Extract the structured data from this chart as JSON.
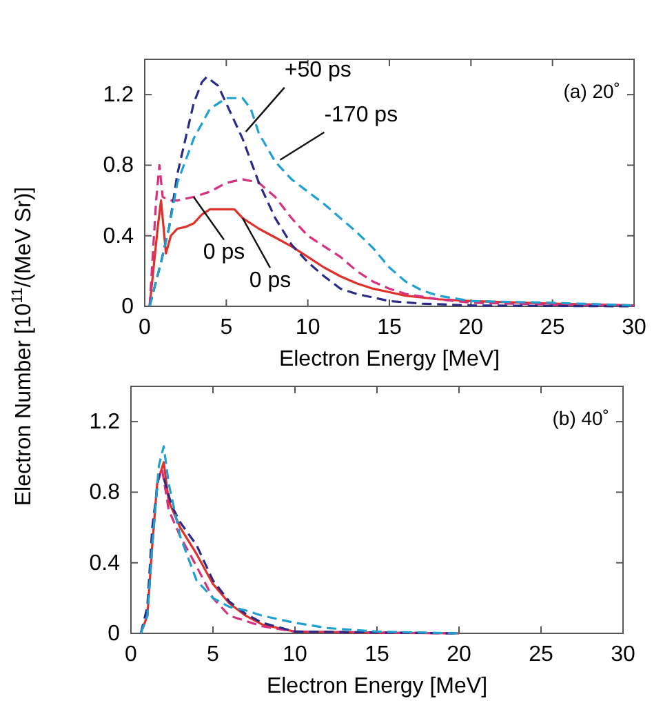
{
  "chart_data": [
    {
      "type": "line",
      "xlabel": "Electron Energy [MeV]",
      "ylabel": "Electron Number [10$^{11}$/(MeV Sr)]",
      "xlim": [
        0,
        30
      ],
      "ylim": [
        0,
        1.4
      ],
      "xticks": [
        0,
        5,
        10,
        15,
        20,
        25,
        30
      ],
      "yticks": [
        0,
        0.4,
        0.8,
        1.2
      ],
      "grid": false,
      "annotations": [
        "(a) 20˚",
        {
          "text": "+50 ps",
          "x": 6.2,
          "y": 0.99
        },
        {
          "text": "-170 ps",
          "x": 8.3,
          "y": 0.83
        },
        {
          "text": "0 ps",
          "x": 3.0,
          "y": 0.62
        },
        {
          "text": "0 ps",
          "x": 6.0,
          "y": 0.5
        }
      ],
      "series": [
        {
          "color": "#e0302a",
          "line_style": "solid",
          "x": [
            0.3,
            0.8,
            1.0,
            1.2,
            1.3,
            1.6,
            2,
            2.5,
            3,
            3.5,
            4,
            5,
            5.5,
            6,
            7,
            8,
            9,
            10,
            11,
            12,
            13,
            14,
            15,
            16,
            18,
            20,
            25,
            30
          ],
          "values": [
            0,
            0.45,
            0.6,
            0.4,
            0.3,
            0.4,
            0.44,
            0.45,
            0.47,
            0.52,
            0.55,
            0.55,
            0.55,
            0.5,
            0.44,
            0.39,
            0.34,
            0.28,
            0.22,
            0.17,
            0.13,
            0.1,
            0.08,
            0.06,
            0.04,
            0.03,
            0.015,
            0.005
          ]
        },
        {
          "color": "#d6307e",
          "line_style": "dashed",
          "x": [
            0.3,
            0.7,
            0.9,
            1.1,
            1.5,
            2,
            3,
            4,
            5,
            6,
            7,
            8,
            9,
            10,
            11,
            12,
            13,
            14,
            15,
            16,
            18,
            20,
            25,
            30
          ],
          "values": [
            0,
            0.6,
            0.8,
            0.62,
            0.6,
            0.6,
            0.62,
            0.65,
            0.7,
            0.72,
            0.7,
            0.62,
            0.5,
            0.4,
            0.34,
            0.28,
            0.2,
            0.14,
            0.1,
            0.07,
            0.04,
            0.02,
            0.01,
            0.005
          ]
        },
        {
          "color": "#2b2b86",
          "line_style": "dashed",
          "x": [
            0.3,
            1,
            1.5,
            2,
            2.5,
            3,
            3.5,
            3.8,
            4.5,
            5,
            6,
            7,
            8,
            9,
            10,
            11,
            12,
            13,
            14,
            15,
            17,
            20,
            30
          ],
          "values": [
            0,
            0.25,
            0.45,
            0.75,
            0.95,
            1.15,
            1.27,
            1.3,
            1.25,
            1.15,
            0.95,
            0.7,
            0.5,
            0.35,
            0.25,
            0.17,
            0.1,
            0.07,
            0.05,
            0.03,
            0.015,
            0.005,
            0
          ]
        },
        {
          "color": "#1fa0d0",
          "line_style": "dashed",
          "x": [
            0.3,
            1,
            1.5,
            2,
            3,
            4,
            5,
            6,
            6.5,
            7,
            8,
            9,
            10,
            11,
            12,
            13,
            14,
            15,
            16,
            17,
            18,
            20,
            25,
            30
          ],
          "values": [
            0,
            0.25,
            0.45,
            0.7,
            0.95,
            1.12,
            1.18,
            1.18,
            1.12,
            0.98,
            0.82,
            0.72,
            0.65,
            0.58,
            0.5,
            0.42,
            0.33,
            0.22,
            0.14,
            0.09,
            0.06,
            0.03,
            0.02,
            0.005
          ]
        }
      ]
    },
    {
      "type": "line",
      "xlabel": "Electron Energy [MeV]",
      "xlim": [
        0,
        30
      ],
      "ylim": [
        0,
        1.4
      ],
      "xticks": [
        0,
        5,
        10,
        15,
        20,
        25,
        30
      ],
      "yticks": [
        0,
        0.4,
        0.8,
        1.2
      ],
      "grid": false,
      "annotations": [
        "(b) 40˚"
      ],
      "series": [
        {
          "color": "#e0302a",
          "line_style": "solid",
          "x": [
            0.6,
            1,
            1.3,
            1.6,
            2,
            2.3,
            3,
            4,
            5,
            6,
            7,
            8,
            10,
            15,
            20
          ],
          "values": [
            0,
            0.1,
            0.5,
            0.85,
            0.97,
            0.75,
            0.6,
            0.45,
            0.28,
            0.17,
            0.1,
            0.05,
            0.01,
            0.003,
            0
          ]
        },
        {
          "color": "#d6307e",
          "line_style": "dashed",
          "x": [
            0.6,
            1,
            1.3,
            1.6,
            1.9,
            2.3,
            3,
            4,
            5,
            6,
            7,
            8,
            10,
            20
          ],
          "values": [
            0,
            0.1,
            0.5,
            0.85,
            0.93,
            0.7,
            0.55,
            0.38,
            0.2,
            0.1,
            0.07,
            0.04,
            0.01,
            0
          ]
        },
        {
          "color": "#2b2b86",
          "line_style": "dashed",
          "x": [
            0.6,
            1,
            1.3,
            1.7,
            2,
            2.5,
            3,
            4,
            5,
            6,
            7,
            8,
            10,
            20
          ],
          "values": [
            0,
            0.15,
            0.6,
            0.9,
            0.88,
            0.72,
            0.63,
            0.5,
            0.3,
            0.18,
            0.11,
            0.06,
            0.01,
            0
          ]
        },
        {
          "color": "#1fa0d0",
          "line_style": "dashed",
          "x": [
            0.6,
            1,
            1.3,
            1.7,
            2,
            2.3,
            3,
            4,
            5,
            6,
            7,
            8,
            10,
            12,
            15,
            20
          ],
          "values": [
            0,
            0.1,
            0.5,
            0.95,
            1.06,
            0.85,
            0.55,
            0.3,
            0.2,
            0.15,
            0.13,
            0.1,
            0.06,
            0.03,
            0.01,
            0
          ]
        }
      ]
    }
  ]
}
